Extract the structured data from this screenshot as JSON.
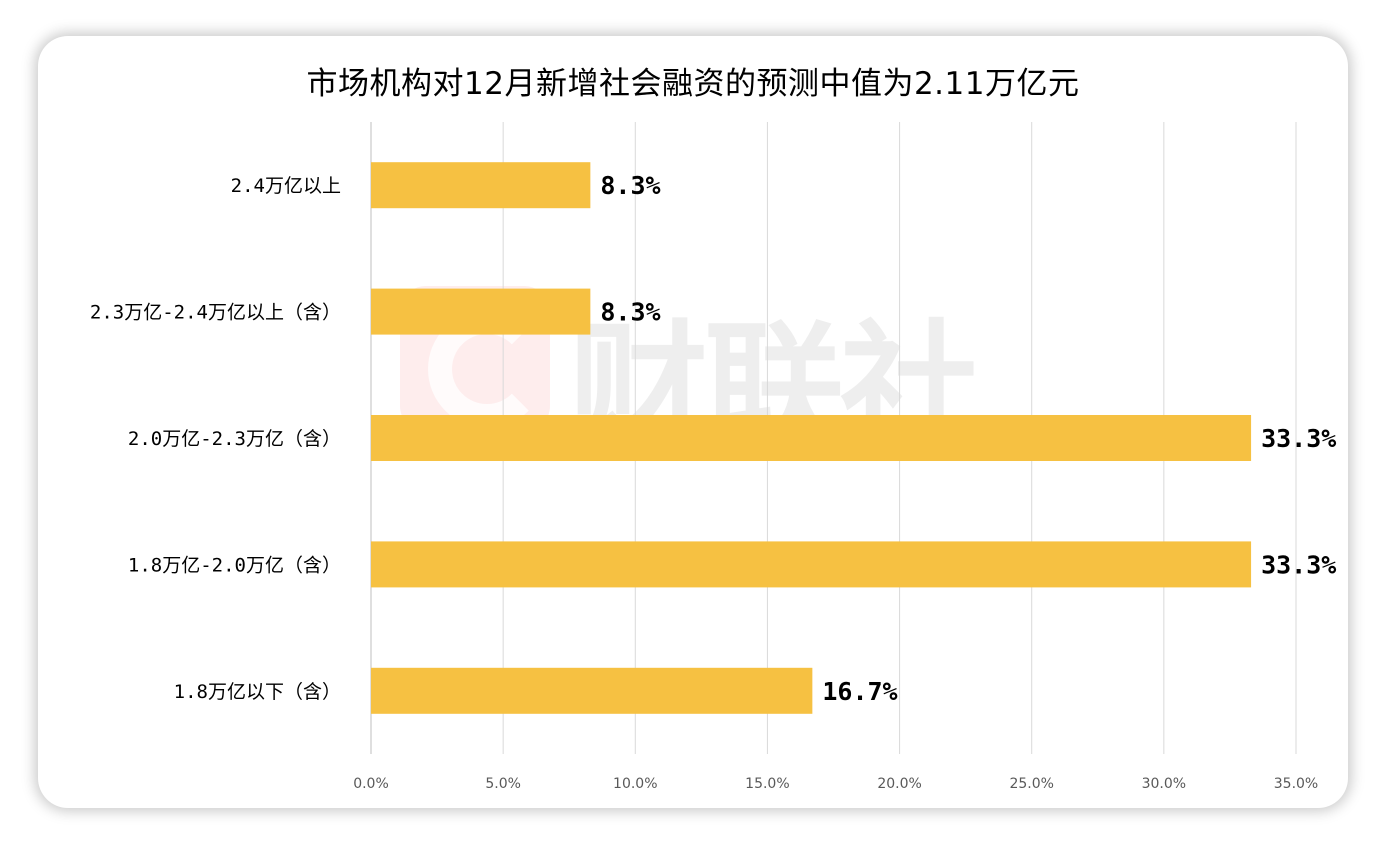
{
  "chart_data": {
    "type": "bar",
    "orientation": "horizontal",
    "title": "市场机构对12月新增社会融资的预测中值为2.11万亿元",
    "categories": [
      "2.4万亿以上",
      "2.3万亿-2.4万亿以上（含）",
      "2.0万亿-2.3万亿（含）",
      "1.8万亿-2.0万亿（含）",
      "1.8万亿以下（含）"
    ],
    "values": [
      8.3,
      8.3,
      33.3,
      33.3,
      16.7
    ],
    "data_labels": [
      "8.3%",
      "8.3%",
      "33.3%",
      "33.3%",
      "16.7%"
    ],
    "xlim": [
      0,
      35
    ],
    "x_ticks": [
      0,
      5,
      10,
      15,
      20,
      25,
      30,
      35
    ],
    "x_tick_labels": [
      "0.0%",
      "5.0%",
      "10.0%",
      "15.0%",
      "20.0%",
      "25.0%",
      "30.0%",
      "35.0%"
    ],
    "xlabel": "",
    "ylabel": "",
    "grid": "vertical",
    "legend": "none",
    "bar_color": "#F6C142"
  },
  "watermark": {
    "text": "财联社",
    "logo_icon": "cailianshe-logo-icon"
  }
}
